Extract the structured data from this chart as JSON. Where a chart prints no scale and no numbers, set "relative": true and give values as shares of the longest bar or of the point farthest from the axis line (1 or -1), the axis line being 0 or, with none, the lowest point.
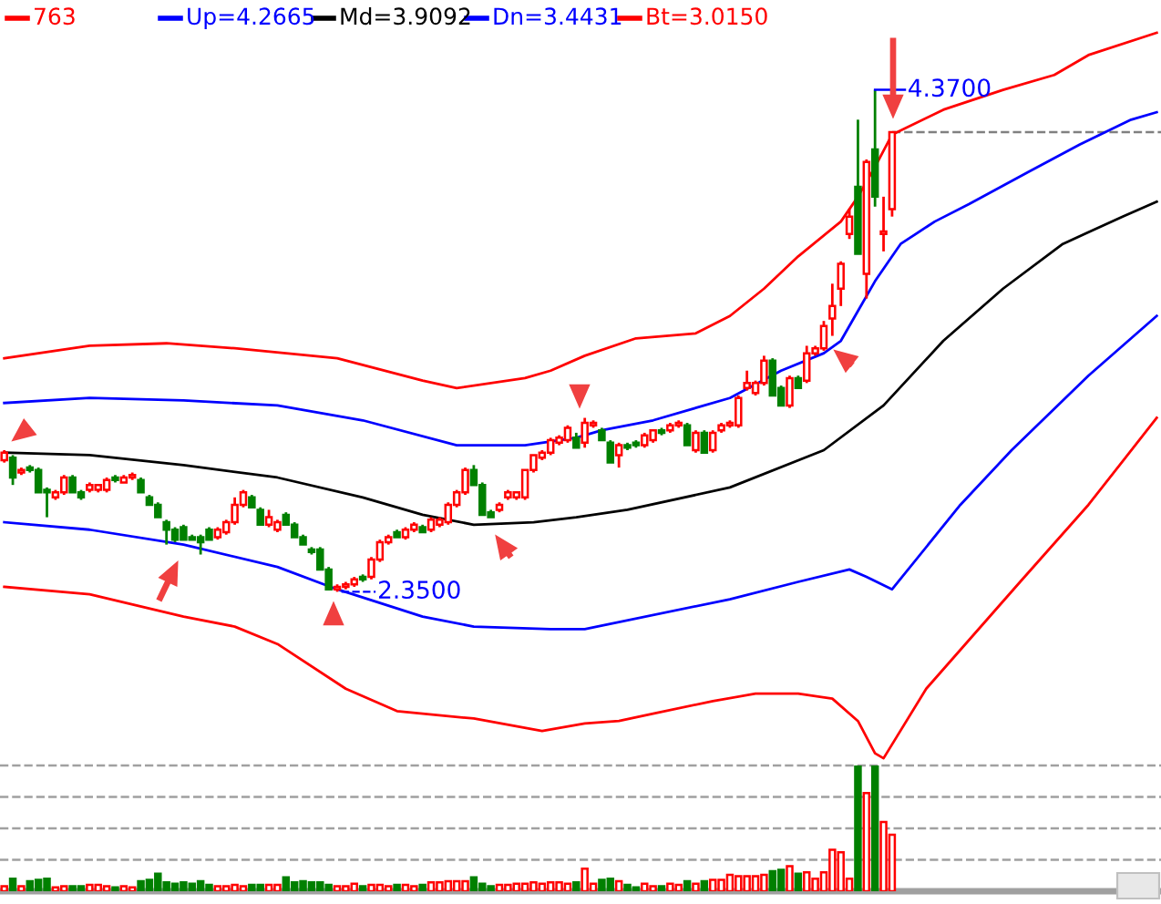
{
  "chart_data": [
    {
      "type": "candlestick",
      "tick_labels": false,
      "legend": "top",
      "categories": [
        null,
        null,
        null,
        null,
        null,
        null,
        null,
        null,
        null,
        null,
        null,
        null,
        null,
        null,
        null,
        null,
        null,
        null,
        null,
        null,
        null,
        null,
        null,
        null,
        null,
        null,
        null,
        null,
        null,
        null,
        null,
        null,
        null,
        null,
        null,
        null,
        null,
        null,
        null,
        null,
        null,
        null,
        null,
        null,
        null,
        null,
        null,
        null,
        null,
        null,
        null,
        null,
        null,
        null,
        null,
        null,
        null,
        null,
        null,
        null,
        null,
        null,
        null,
        null,
        null,
        null,
        null,
        null,
        null,
        null,
        null,
        null,
        null,
        null,
        null,
        null,
        null,
        null,
        null,
        null,
        null,
        null,
        null,
        null,
        null,
        null,
        null,
        null,
        null,
        null,
        null,
        null,
        null,
        null,
        null,
        null,
        null,
        null,
        null,
        null,
        null,
        null,
        null,
        null,
        null,
        null,
        null,
        null,
        null,
        null,
        null,
        null,
        null,
        null,
        null,
        null,
        null,
        null,
        null,
        null,
        null,
        null,
        null,
        null,
        null,
        null,
        null,
        null,
        null,
        null,
        null,
        null,
        null,
        null,
        null,
        null
      ],
      "ohlc": [
        [
          2.88,
          2.92,
          2.87,
          2.91
        ],
        [
          2.89,
          2.9,
          2.78,
          2.81
        ],
        [
          2.83,
          2.85,
          2.82,
          2.84
        ],
        [
          2.85,
          2.86,
          2.83,
          2.84
        ],
        [
          2.84,
          2.85,
          2.75,
          2.75
        ],
        [
          2.76,
          2.77,
          2.65,
          2.75
        ],
        [
          2.73,
          2.76,
          2.72,
          2.75
        ],
        [
          2.75,
          2.82,
          2.74,
          2.81
        ],
        [
          2.81,
          2.82,
          2.75,
          2.75
        ],
        [
          2.75,
          2.76,
          2.72,
          2.73
        ],
        [
          2.76,
          2.79,
          2.75,
          2.78
        ],
        [
          2.76,
          2.78,
          2.75,
          2.78
        ],
        [
          2.76,
          2.81,
          2.75,
          2.8
        ],
        [
          2.81,
          2.82,
          2.79,
          2.8
        ],
        [
          2.79,
          2.82,
          2.79,
          2.81
        ],
        [
          2.81,
          2.83,
          2.8,
          2.82
        ],
        [
          2.8,
          2.81,
          2.75,
          2.75
        ],
        [
          2.73,
          2.74,
          2.7,
          2.7
        ],
        [
          2.7,
          2.71,
          2.65,
          2.65
        ],
        [
          2.63,
          2.64,
          2.54,
          2.6
        ],
        [
          2.6,
          2.61,
          2.55,
          2.56
        ],
        [
          2.61,
          2.62,
          2.56,
          2.56
        ],
        [
          2.57,
          2.58,
          2.56,
          2.56
        ],
        [
          2.57,
          2.58,
          2.5,
          2.55
        ],
        [
          2.6,
          2.61,
          2.56,
          2.56
        ],
        [
          2.57,
          2.61,
          2.56,
          2.6
        ],
        [
          2.59,
          2.64,
          2.58,
          2.63
        ],
        [
          2.63,
          2.73,
          2.62,
          2.7
        ],
        [
          2.7,
          2.76,
          2.69,
          2.75
        ],
        [
          2.73,
          2.74,
          2.69,
          2.69
        ],
        [
          2.68,
          2.69,
          2.62,
          2.62
        ],
        [
          2.62,
          2.68,
          2.61,
          2.65
        ],
        [
          2.6,
          2.64,
          2.59,
          2.63
        ],
        [
          2.66,
          2.67,
          2.62,
          2.62
        ],
        [
          2.62,
          2.63,
          2.57,
          2.57
        ],
        [
          2.57,
          2.58,
          2.54,
          2.54
        ],
        [
          2.52,
          2.53,
          2.5,
          2.51
        ],
        [
          2.52,
          2.53,
          2.44,
          2.44
        ],
        [
          2.44,
          2.45,
          2.36,
          2.36
        ],
        [
          2.36,
          2.38,
          2.35,
          2.37
        ],
        [
          2.37,
          2.39,
          2.36,
          2.38
        ],
        [
          2.38,
          2.41,
          2.37,
          2.4
        ],
        [
          2.41,
          2.42,
          2.39,
          2.4
        ],
        [
          2.41,
          2.49,
          2.4,
          2.48
        ],
        [
          2.48,
          2.56,
          2.47,
          2.55
        ],
        [
          2.55,
          2.58,
          2.54,
          2.57
        ],
        [
          2.59,
          2.6,
          2.57,
          2.57
        ],
        [
          2.57,
          2.61,
          2.56,
          2.6
        ],
        [
          2.6,
          2.63,
          2.59,
          2.62
        ],
        [
          2.61,
          2.62,
          2.59,
          2.59
        ],
        [
          2.6,
          2.65,
          2.59,
          2.64
        ],
        [
          2.62,
          2.65,
          2.61,
          2.64
        ],
        [
          2.63,
          2.71,
          2.62,
          2.7
        ],
        [
          2.7,
          2.76,
          2.69,
          2.75
        ],
        [
          2.75,
          2.85,
          2.74,
          2.84
        ],
        [
          2.84,
          2.86,
          2.78,
          2.78
        ],
        [
          2.78,
          2.79,
          2.66,
          2.66
        ],
        [
          2.67,
          2.68,
          2.65,
          2.65
        ],
        [
          2.68,
          2.71,
          2.67,
          2.7
        ],
        [
          2.73,
          2.76,
          2.72,
          2.75
        ],
        [
          2.73,
          2.75,
          2.72,
          2.75
        ],
        [
          2.73,
          2.84,
          2.72,
          2.84
        ],
        [
          2.84,
          2.9,
          2.83,
          2.9
        ],
        [
          2.89,
          2.92,
          2.88,
          2.91
        ],
        [
          2.91,
          2.97,
          2.9,
          2.96
        ],
        [
          2.95,
          2.98,
          2.94,
          2.97
        ],
        [
          2.96,
          3.02,
          2.95,
          3.01
        ],
        [
          2.97,
          2.99,
          2.93,
          2.93
        ],
        [
          2.95,
          3.05,
          2.93,
          3.03
        ],
        [
          3.02,
          3.04,
          3.01,
          3.03
        ],
        [
          3.0,
          3.01,
          2.96,
          2.96
        ],
        [
          2.95,
          2.96,
          2.87,
          2.87
        ],
        [
          2.9,
          2.95,
          2.85,
          2.94
        ],
        [
          2.94,
          2.95,
          2.92,
          2.93
        ],
        [
          2.95,
          2.96,
          2.93,
          2.94
        ],
        [
          2.94,
          2.99,
          2.93,
          2.98
        ],
        [
          2.96,
          3.0,
          2.95,
          3.0
        ],
        [
          3.0,
          3.01,
          2.98,
          2.99
        ],
        [
          3.0,
          3.03,
          2.99,
          3.02
        ],
        [
          3.02,
          3.04,
          3.01,
          3.03
        ],
        [
          3.02,
          3.03,
          2.94,
          2.94
        ],
        [
          2.92,
          3.0,
          2.91,
          2.99
        ],
        [
          2.99,
          3.0,
          2.91,
          2.91
        ],
        [
          2.92,
          3.0,
          2.91,
          2.99
        ],
        [
          3.0,
          3.03,
          2.99,
          3.02
        ],
        [
          3.02,
          3.04,
          3.01,
          3.03
        ],
        [
          3.02,
          3.14,
          3.01,
          3.13
        ],
        [
          3.17,
          3.24,
          3.16,
          3.19
        ],
        [
          3.15,
          3.2,
          3.14,
          3.19
        ],
        [
          3.19,
          3.3,
          3.18,
          3.28
        ],
        [
          3.28,
          3.29,
          3.14,
          3.14
        ],
        [
          3.17,
          3.18,
          3.1,
          3.1
        ],
        [
          3.1,
          3.22,
          3.09,
          3.21
        ],
        [
          3.21,
          3.22,
          3.17,
          3.17
        ],
        [
          3.2,
          3.34,
          3.19,
          3.31
        ],
        [
          3.31,
          3.34,
          3.3,
          3.33
        ],
        [
          3.33,
          3.44,
          3.32,
          3.42
        ],
        [
          3.45,
          3.59,
          3.38,
          3.5
        ],
        [
          3.57,
          3.68,
          3.5,
          3.67
        ],
        [
          3.79,
          3.89,
          3.77,
          3.86
        ],
        [
          3.98,
          4.25,
          3.71,
          3.71
        ],
        [
          3.63,
          4.09,
          3.53,
          4.08
        ],
        [
          4.13,
          4.37,
          3.9,
          3.94
        ],
        [
          3.79,
          3.94,
          3.72,
          3.8
        ],
        [
          3.89,
          4.2,
          3.86,
          4.2
        ],
        null,
        null,
        null,
        null,
        null,
        null,
        null,
        null,
        null,
        null,
        null,
        null,
        null,
        null,
        null,
        null,
        null,
        null,
        null,
        null,
        null,
        null,
        null,
        null,
        null,
        null,
        null,
        null,
        null,
        null,
        null
      ],
      "colors": [
        "#ff0000",
        "#008000",
        "#ff0000",
        "#008000",
        "#008000",
        "#008000",
        "#ff0000",
        "#ff0000",
        "#008000",
        "#008000",
        "#ff0000",
        "#ff0000",
        "#ff0000",
        "#008000",
        "#ff0000",
        "#ff0000",
        "#008000",
        "#008000",
        "#008000",
        "#008000",
        "#008000",
        "#008000",
        "#008000",
        "#008000",
        "#008000",
        "#ff0000",
        "#ff0000",
        "#ff0000",
        "#ff0000",
        "#008000",
        "#008000",
        "#ff0000",
        "#ff0000",
        "#008000",
        "#008000",
        "#008000",
        "#008000",
        "#008000",
        "#008000",
        "#ff0000",
        "#ff0000",
        "#ff0000",
        "#008000",
        "#ff0000",
        "#ff0000",
        "#ff0000",
        "#008000",
        "#ff0000",
        "#ff0000",
        "#008000",
        "#ff0000",
        "#ff0000",
        "#ff0000",
        "#ff0000",
        "#ff0000",
        "#008000",
        "#008000",
        "#008000",
        "#ff0000",
        "#ff0000",
        "#ff0000",
        "#ff0000",
        "#ff0000",
        "#ff0000",
        "#ff0000",
        "#ff0000",
        "#ff0000",
        "#008000",
        "#ff0000",
        "#ff0000",
        "#008000",
        "#008000",
        "#ff0000",
        "#008000",
        "#008000",
        "#ff0000",
        "#ff0000",
        "#008000",
        "#ff0000",
        "#ff0000",
        "#008000",
        "#ff0000",
        "#008000",
        "#ff0000",
        "#ff0000",
        "#ff0000",
        "#ff0000",
        "#ff0000",
        "#ff0000",
        "#ff0000",
        "#008000",
        "#008000",
        "#ff0000",
        "#008000",
        "#ff0000",
        "#ff0000",
        "#ff0000",
        "#ff0000",
        "#ff0000",
        "#ff0000",
        "#008000",
        "#ff0000",
        "#008000",
        "#ff0000",
        "#ff0000",
        null,
        null,
        null,
        null,
        null,
        null,
        null,
        null,
        null,
        null,
        null,
        null,
        null,
        null,
        null,
        null,
        null,
        null,
        null,
        null,
        null,
        null,
        null,
        null,
        null,
        null,
        null,
        null,
        null,
        null,
        null
      ],
      "series": [
        {
          "name": "763",
          "type": "line",
          "color": "#ff0000",
          "values": [
            3.29,
            null,
            null,
            null,
            null,
            null,
            null,
            null,
            null,
            null,
            3.34,
            null,
            null,
            null,
            null,
            null,
            null,
            null,
            null,
            3.35,
            null,
            null,
            null,
            null,
            null,
            null,
            null,
            3.33,
            null,
            null,
            null,
            null,
            null,
            null,
            null,
            null,
            null,
            null,
            null,
            3.29,
            null,
            null,
            null,
            null,
            null,
            null,
            null,
            null,
            null,
            3.2,
            null,
            null,
            null,
            3.17,
            null,
            null,
            null,
            null,
            null,
            null,
            null,
            3.21,
            null,
            null,
            3.24,
            null,
            null,
            null,
            3.3,
            null,
            null,
            null,
            null,
            null,
            3.37,
            null,
            null,
            null,
            null,
            null,
            null,
            3.39,
            null,
            null,
            null,
            3.46,
            null,
            null,
            null,
            3.57,
            null,
            null,
            null,
            3.7,
            null,
            null,
            null,
            null,
            3.84,
            null,
            3.94,
            null,
            4.06,
            null,
            4.19,
            null,
            null,
            null,
            null,
            null,
            4.29,
            null,
            null,
            null,
            null,
            null,
            null,
            4.37,
            null,
            null,
            null,
            null,
            null,
            4.43,
            null,
            null,
            null,
            4.51,
            null,
            null,
            null,
            null,
            null,
            null,
            null,
            4.6
          ]
        },
        {
          "name": "Up=4.2665",
          "type": "line",
          "color": "#0000ff",
          "values": [
            3.11,
            null,
            null,
            null,
            null,
            null,
            null,
            null,
            null,
            null,
            3.13,
            null,
            null,
            null,
            null,
            null,
            null,
            null,
            null,
            null,
            null,
            3.12,
            null,
            null,
            null,
            null,
            null,
            null,
            null,
            null,
            null,
            null,
            3.1,
            null,
            null,
            null,
            null,
            null,
            null,
            null,
            null,
            null,
            3.04,
            null,
            null,
            null,
            null,
            null,
            null,
            null,
            null,
            null,
            null,
            2.94,
            null,
            null,
            null,
            null,
            null,
            null,
            null,
            2.94,
            null,
            null,
            null,
            null,
            null,
            2.97,
            null,
            null,
            3.0,
            null,
            null,
            null,
            null,
            null,
            3.04,
            null,
            null,
            null,
            null,
            null,
            null,
            null,
            null,
            3.13,
            null,
            null,
            null,
            null,
            null,
            3.24,
            null,
            null,
            null,
            null,
            3.31,
            null,
            3.36,
            null,
            3.48,
            null,
            3.6,
            null,
            3.7,
            3.75,
            null,
            null,
            null,
            3.84,
            null,
            null,
            null,
            3.91,
            null,
            null,
            null,
            null,
            null,
            null,
            4.04,
            null,
            null,
            null,
            null,
            null,
            4.15,
            null,
            null,
            null,
            null,
            null,
            4.25,
            null,
            null,
            4.28
          ]
        },
        {
          "name": "Md=3.9092",
          "type": "line",
          "color": "#000000",
          "values": [
            2.91,
            null,
            null,
            null,
            null,
            null,
            null,
            null,
            null,
            null,
            2.9,
            null,
            null,
            null,
            null,
            null,
            null,
            null,
            null,
            null,
            null,
            2.86,
            null,
            null,
            null,
            null,
            null,
            null,
            null,
            null,
            null,
            null,
            2.81,
            null,
            null,
            null,
            null,
            null,
            null,
            null,
            null,
            null,
            2.73,
            null,
            null,
            null,
            null,
            null,
            null,
            2.66,
            null,
            null,
            null,
            null,
            null,
            2.62,
            null,
            null,
            null,
            null,
            null,
            null,
            2.63,
            null,
            null,
            null,
            null,
            2.65,
            null,
            null,
            null,
            null,
            null,
            2.68,
            null,
            null,
            null,
            null,
            null,
            null,
            null,
            null,
            null,
            null,
            null,
            2.77,
            null,
            null,
            null,
            null,
            null,
            null,
            null,
            null,
            null,
            null,
            2.92,
            null,
            null,
            null,
            null,
            null,
            null,
            3.1,
            null,
            null,
            null,
            null,
            null,
            null,
            3.36,
            null,
            null,
            null,
            null,
            null,
            null,
            3.57,
            null,
            null,
            null,
            null,
            null,
            null,
            3.75,
            null,
            null,
            null,
            null,
            null,
            null,
            3.86,
            null,
            null,
            null,
            3.92
          ]
        },
        {
          "name": "Dn=3.4431",
          "type": "line",
          "color": "#0000ff",
          "values": [
            2.63,
            null,
            null,
            null,
            null,
            null,
            null,
            null,
            null,
            null,
            2.6,
            null,
            null,
            null,
            null,
            null,
            null,
            null,
            null,
            null,
            null,
            2.54,
            null,
            null,
            null,
            null,
            null,
            null,
            null,
            null,
            null,
            null,
            2.45,
            null,
            null,
            null,
            null,
            null,
            null,
            2.36,
            null,
            null,
            null,
            null,
            null,
            null,
            null,
            null,
            null,
            2.25,
            null,
            null,
            null,
            null,
            null,
            2.21,
            null,
            null,
            null,
            null,
            null,
            null,
            null,
            null,
            2.2,
            null,
            null,
            null,
            2.2,
            null,
            null,
            null,
            null,
            null,
            null,
            null,
            null,
            null,
            null,
            null,
            null,
            null,
            null,
            null,
            null,
            2.32,
            null,
            null,
            null,
            null,
            null,
            null,
            null,
            2.39,
            null,
            null,
            null,
            null,
            null,
            2.44,
            null,
            2.41,
            null,
            null,
            2.36,
            null,
            null,
            null,
            null,
            null,
            null,
            null,
            2.7,
            null,
            null,
            null,
            null,
            null,
            2.92,
            null,
            null,
            null,
            null,
            null,
            null,
            null,
            null,
            3.22,
            null,
            null,
            null,
            null,
            null,
            null,
            null,
            3.46
          ]
        },
        {
          "name": "Bt=3.0150",
          "type": "line",
          "color": "#ff0000",
          "values": [
            2.37,
            null,
            null,
            null,
            null,
            null,
            null,
            null,
            null,
            null,
            2.34,
            null,
            null,
            null,
            null,
            null,
            null,
            null,
            null,
            null,
            null,
            2.25,
            null,
            null,
            null,
            null,
            null,
            2.21,
            null,
            null,
            null,
            null,
            2.14,
            null,
            null,
            null,
            null,
            null,
            null,
            null,
            1.96,
            null,
            null,
            null,
            null,
            null,
            1.87,
            null,
            null,
            null,
            null,
            null,
            null,
            null,
            null,
            1.84,
            null,
            null,
            null,
            null,
            null,
            null,
            null,
            1.79,
            null,
            null,
            null,
            null,
            1.82,
            null,
            null,
            null,
            1.83,
            null,
            null,
            null,
            1.86,
            null,
            null,
            null,
            null,
            null,
            null,
            1.91,
            null,
            null,
            null,
            null,
            1.94,
            null,
            null,
            null,
            null,
            1.94,
            null,
            null,
            null,
            1.92,
            null,
            null,
            1.83,
            null,
            1.7,
            1.68,
            null,
            null,
            null,
            null,
            1.96,
            null,
            null,
            null,
            null,
            null,
            null,
            null,
            null,
            null,
            null,
            2.39,
            null,
            null,
            null,
            null,
            null,
            null,
            null,
            2.7,
            null,
            null,
            null,
            null,
            null,
            null,
            null,
            3.05
          ]
        }
      ],
      "ref_lines": [
        {
          "axis": "y",
          "value": 4.2,
          "color": "#808080",
          "line_style": "dashed"
        }
      ],
      "annotations": [
        "2.3500",
        "4.3700"
      ]
    },
    {
      "type": "bar",
      "relative": true,
      "tick_labels": false,
      "categories": [
        null,
        null,
        null,
        null,
        null,
        null,
        null,
        null,
        null,
        null,
        null,
        null,
        null,
        null,
        null,
        null,
        null,
        null,
        null,
        null,
        null,
        null,
        null,
        null,
        null,
        null,
        null,
        null,
        null,
        null,
        null,
        null,
        null,
        null,
        null,
        null,
        null,
        null,
        null,
        null,
        null,
        null,
        null,
        null,
        null,
        null,
        null,
        null,
        null,
        null,
        null,
        null,
        null,
        null,
        null,
        null,
        null,
        null,
        null,
        null,
        null,
        null,
        null,
        null,
        null,
        null,
        null,
        null,
        null,
        null,
        null,
        null,
        null,
        null,
        null,
        null,
        null,
        null,
        null,
        null,
        null,
        null,
        null,
        null,
        null,
        null,
        null,
        null,
        null,
        null,
        null,
        null,
        null,
        null,
        null,
        null,
        null,
        null,
        null,
        null,
        null,
        null,
        null,
        null,
        null,
        null,
        null,
        null,
        null,
        null,
        null,
        null,
        null,
        null,
        null,
        null,
        null,
        null,
        null,
        null,
        null,
        null,
        null,
        null,
        null,
        null,
        null,
        null,
        null,
        null,
        null,
        null,
        null,
        null,
        null,
        null
      ],
      "values": [
        0.04,
        0.1,
        0.04,
        0.08,
        0.09,
        0.1,
        0.03,
        0.04,
        0.04,
        0.04,
        0.05,
        0.05,
        0.04,
        0.03,
        0.04,
        0.03,
        0.08,
        0.09,
        0.14,
        0.07,
        0.06,
        0.07,
        0.06,
        0.08,
        0.05,
        0.04,
        0.04,
        0.05,
        0.04,
        0.05,
        0.05,
        0.05,
        0.05,
        0.11,
        0.07,
        0.08,
        0.07,
        0.07,
        0.05,
        0.04,
        0.04,
        0.06,
        0.04,
        0.05,
        0.05,
        0.04,
        0.05,
        0.05,
        0.04,
        0.05,
        0.07,
        0.07,
        0.08,
        0.08,
        0.08,
        0.11,
        0.06,
        0.04,
        0.05,
        0.05,
        0.06,
        0.06,
        0.07,
        0.06,
        0.07,
        0.07,
        0.06,
        0.07,
        0.18,
        0.06,
        0.09,
        0.1,
        0.08,
        0.05,
        0.03,
        0.06,
        0.04,
        0.04,
        0.06,
        0.05,
        0.08,
        0.06,
        0.08,
        0.09,
        0.09,
        0.13,
        0.12,
        0.12,
        0.12,
        0.13,
        0.16,
        0.17,
        0.2,
        0.14,
        0.15,
        0.1,
        0.15,
        0.33,
        0.31,
        0.1,
        1,
        0.78,
        1,
        0.55,
        0.45,
        null,
        null,
        null,
        null,
        null,
        null,
        null,
        null,
        null,
        null,
        null,
        null,
        null,
        null,
        null,
        null,
        null,
        null,
        null,
        null,
        null,
        null,
        null,
        null,
        null,
        null,
        null,
        null,
        null,
        null,
        null
      ],
      "colors": [
        "#ff0000",
        "#008000",
        "#ff0000",
        "#008000",
        "#008000",
        "#008000",
        "#ff0000",
        "#ff0000",
        "#008000",
        "#008000",
        "#ff0000",
        "#ff0000",
        "#ff0000",
        "#008000",
        "#ff0000",
        "#ff0000",
        "#008000",
        "#008000",
        "#008000",
        "#008000",
        "#008000",
        "#008000",
        "#008000",
        "#008000",
        "#008000",
        "#ff0000",
        "#ff0000",
        "#ff0000",
        "#ff0000",
        "#008000",
        "#008000",
        "#ff0000",
        "#ff0000",
        "#008000",
        "#008000",
        "#008000",
        "#008000",
        "#008000",
        "#008000",
        "#ff0000",
        "#ff0000",
        "#ff0000",
        "#008000",
        "#ff0000",
        "#ff0000",
        "#ff0000",
        "#008000",
        "#ff0000",
        "#ff0000",
        "#008000",
        "#ff0000",
        "#ff0000",
        "#ff0000",
        "#ff0000",
        "#ff0000",
        "#008000",
        "#008000",
        "#008000",
        "#ff0000",
        "#ff0000",
        "#ff0000",
        "#ff0000",
        "#ff0000",
        "#ff0000",
        "#ff0000",
        "#ff0000",
        "#ff0000",
        "#008000",
        "#ff0000",
        "#ff0000",
        "#008000",
        "#008000",
        "#ff0000",
        "#008000",
        "#008000",
        "#ff0000",
        "#ff0000",
        "#008000",
        "#ff0000",
        "#ff0000",
        "#008000",
        "#ff0000",
        "#008000",
        "#ff0000",
        "#ff0000",
        "#ff0000",
        "#ff0000",
        "#ff0000",
        "#ff0000",
        "#ff0000",
        "#008000",
        "#008000",
        "#ff0000",
        "#008000",
        "#ff0000",
        "#ff0000",
        "#ff0000",
        "#ff0000",
        "#ff0000",
        "#ff0000",
        "#008000",
        "#ff0000",
        "#008000",
        "#ff0000",
        "#ff0000",
        null,
        null,
        null,
        null,
        null,
        null,
        null,
        null,
        null,
        null,
        null,
        null,
        null,
        null,
        null,
        null,
        null,
        null,
        null,
        null,
        null,
        null,
        null,
        null,
        null,
        null,
        null,
        null,
        null,
        null,
        null
      ],
      "ref_lines": [
        {
          "axis": "y",
          "value": 0.25,
          "color": "#a0a0a0",
          "line_style": "dashed"
        },
        {
          "axis": "y",
          "value": 0.5,
          "color": "#a0a0a0",
          "line_style": "dashed"
        },
        {
          "axis": "y",
          "value": 0.75,
          "color": "#a0a0a0",
          "line_style": "dashed"
        },
        {
          "axis": "y",
          "value": 1,
          "color": "#a0a0a0",
          "line_style": "dashed"
        }
      ]
    }
  ]
}
